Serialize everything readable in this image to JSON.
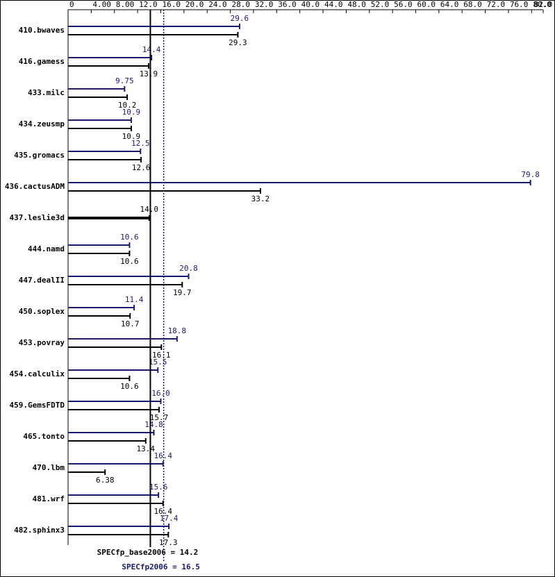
{
  "chart_data": {
    "type": "bar",
    "orientation": "horizontal",
    "categories": [
      "410.bwaves",
      "416.gamess",
      "433.milc",
      "434.zeusmp",
      "435.gromacs",
      "436.cactusADM",
      "437.leslie3d",
      "444.namd",
      "447.dealII",
      "450.soplex",
      "453.povray",
      "454.calculix",
      "459.GemsFDTD",
      "465.tonto",
      "470.lbm",
      "481.wrf",
      "482.sphinx3"
    ],
    "series": [
      {
        "color": "#191970",
        "values": [
          29.6,
          14.4,
          9.75,
          10.9,
          12.5,
          79.8,
          null,
          10.6,
          20.8,
          11.4,
          18.8,
          15.5,
          16,
          14.8,
          16.4,
          15.6,
          17.4
        ],
        "value_labels": [
          "29.6",
          "14.4",
          "9.75",
          "10.9",
          "12.5",
          "79.8",
          null,
          "10.6",
          "20.8",
          "11.4",
          "18.8",
          "15.5",
          "16.0",
          "14.8",
          "16.4",
          "15.6",
          "17.4"
        ]
      },
      {
        "color": "#000000",
        "values": [
          29.3,
          13.9,
          10.2,
          10.9,
          12.6,
          33.2,
          14,
          10.6,
          19.7,
          10.7,
          16.1,
          10.6,
          15.7,
          13.4,
          6.38,
          16.4,
          17.3
        ],
        "value_labels": [
          "29.3",
          "13.9",
          "10.2",
          "10.9",
          "12.6",
          "33.2",
          "14.0",
          "10.6",
          "19.7",
          "10.7",
          "16.1",
          "10.6",
          "15.7",
          "13.4",
          "6.38",
          "16.4",
          "17.3"
        ]
      }
    ],
    "xlim": [
      0,
      82
    ],
    "xticks": [
      0,
      {
        "value": 4,
        "label": "4.00"
      },
      {
        "value": 8,
        "label": "8.00"
      },
      {
        "value": 12,
        "label": "12.0"
      },
      {
        "value": 16,
        "label": "16.0"
      },
      {
        "value": 20,
        "label": "20.0"
      },
      {
        "value": 24,
        "label": "24.0"
      },
      {
        "value": 28,
        "label": "28.0"
      },
      {
        "value": 32,
        "label": "32.0"
      },
      {
        "value": 36,
        "label": "36.0"
      },
      {
        "value": 40,
        "label": "40.0"
      },
      {
        "value": 44,
        "label": "44.0"
      },
      {
        "value": 48,
        "label": "48.0"
      },
      {
        "value": 52,
        "label": "52.0"
      },
      {
        "value": 56,
        "label": "56.0"
      },
      {
        "value": 60,
        "label": "60.0"
      },
      {
        "value": 64,
        "label": "64.0"
      },
      {
        "value": 68,
        "label": "68.0"
      },
      {
        "value": 72,
        "label": "72.0"
      },
      {
        "value": 76,
        "label": "76.0"
      },
      {
        "value": 80,
        "label": "80.0"
      },
      {
        "value": 82,
        "label": "82.0"
      }
    ],
    "reference_lines": [
      {
        "value": 14.2,
        "label": "SPECfp_base2006 = 14.2",
        "color": "#000000",
        "style": "solid"
      },
      {
        "value": 16.5,
        "label": "SPECfp2006 = 16.5",
        "color": "#191970",
        "style": "dotted"
      }
    ]
  }
}
